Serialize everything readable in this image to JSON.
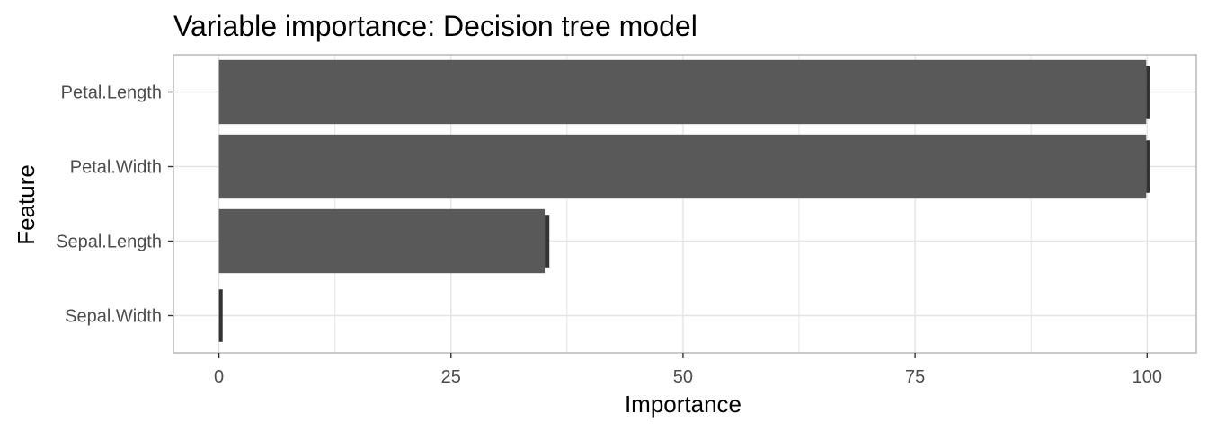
{
  "chart_data": {
    "type": "bar",
    "orientation": "horizontal",
    "title": "Variable importance: Decision tree model",
    "xlabel": "Importance",
    "ylabel": "Feature",
    "categories": [
      "Petal.Length",
      "Petal.Width",
      "Sepal.Length",
      "Sepal.Width"
    ],
    "values": [
      99.9,
      99.9,
      35.1,
      0.0
    ],
    "error_values": [
      100.3,
      100.3,
      35.6,
      0.4
    ],
    "xlim": [
      -4.9,
      105.3
    ],
    "xticks": [
      0,
      25,
      50,
      75,
      100
    ],
    "xtick_labels": [
      "0",
      "25",
      "50",
      "75",
      "100"
    ],
    "grid": true,
    "legend": "none",
    "colors": {
      "bar": "#595959",
      "error_bar": "#333333",
      "grid": "#e5e5e5",
      "panel_border": "#b3b3b3"
    }
  }
}
